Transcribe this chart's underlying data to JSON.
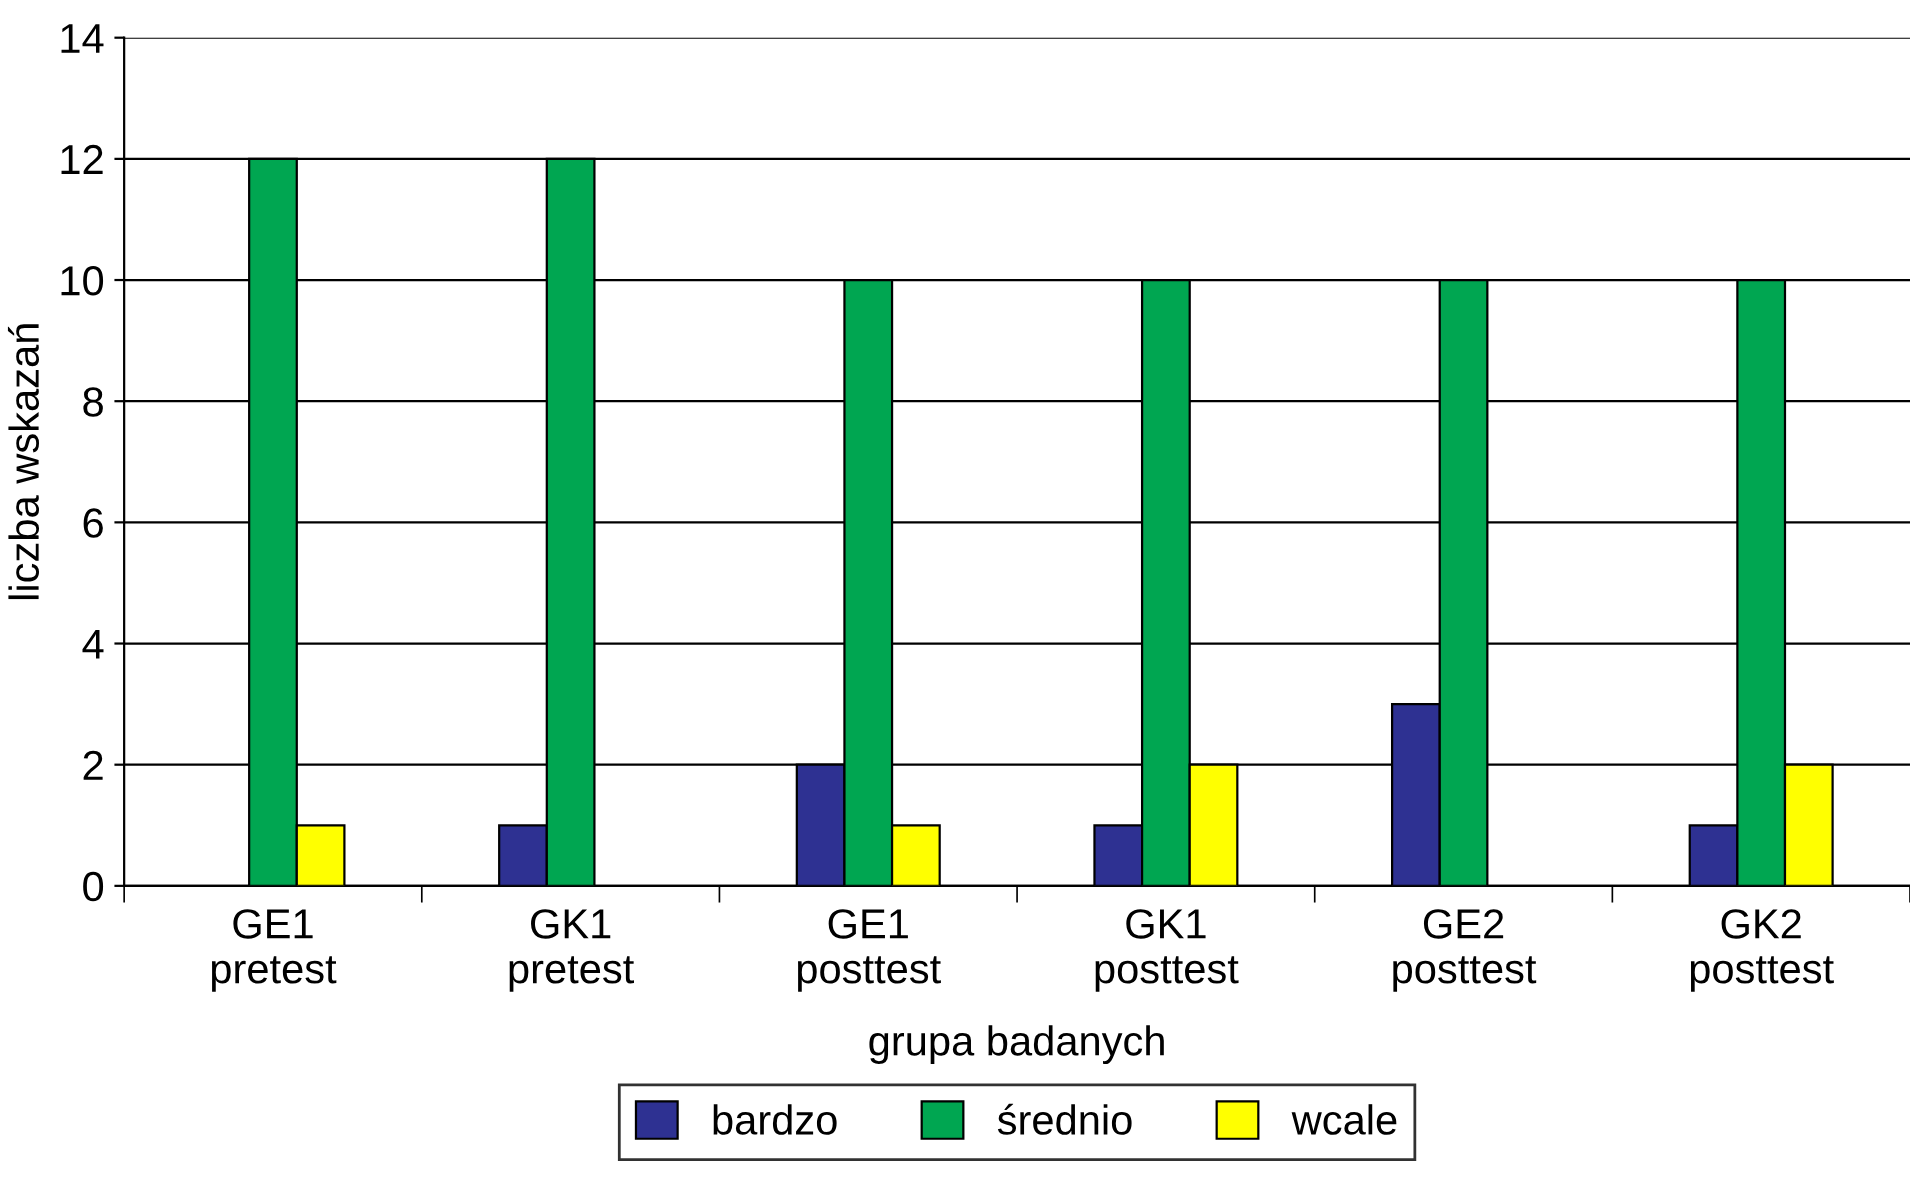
{
  "chart_data": {
    "type": "bar",
    "xlabel": "grupa badanych",
    "ylabel": "liczba wskazań",
    "categories": [
      "GE1\npretest",
      "GK1\npretest",
      "GE1\nposttest",
      "GK1\nposttest",
      "GE2\nposttest",
      "GK2\nposttest"
    ],
    "series": [
      {
        "name": "bardzo",
        "color": "#2e3192",
        "values": [
          null,
          1,
          2,
          1,
          3,
          1
        ]
      },
      {
        "name": "średnio",
        "color": "#00a651",
        "values": [
          12,
          12,
          10,
          10,
          10,
          10
        ]
      },
      {
        "name": "wcale",
        "color": "#ffff00",
        "values": [
          1,
          null,
          1,
          2,
          null,
          2
        ]
      }
    ],
    "ylim": [
      0,
      14
    ],
    "yticks": [
      0,
      2,
      4,
      6,
      8,
      10,
      12,
      14
    ],
    "grid": "y",
    "legend": "bottom"
  }
}
